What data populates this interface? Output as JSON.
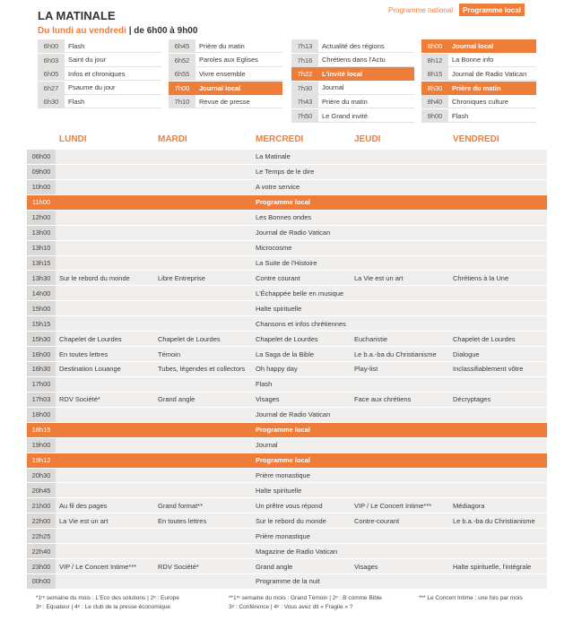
{
  "header": {
    "title": "LA MATINALE",
    "subtitle_days": "Du lundi au vendredi",
    "separator": "|",
    "subtitle_hours": "de 6h00 à 9h00"
  },
  "tabs": [
    {
      "label": "Programme national",
      "active": false
    },
    {
      "label": "Programme local",
      "active": true
    }
  ],
  "morning": {
    "columns": [
      [
        {
          "time": "6h00",
          "program": "Flash"
        },
        {
          "time": "6h03",
          "program": "Saint du jour"
        },
        {
          "time": "6h05",
          "program": "Infos et chroniques"
        },
        {
          "time": "6h27",
          "program": "Psaume du jour"
        },
        {
          "time": "6h30",
          "program": "Flash"
        }
      ],
      [
        {
          "time": "6h45",
          "program": "Prière du matin"
        },
        {
          "time": "6h52",
          "program": "Paroles aux Eglises"
        },
        {
          "time": "6h55",
          "program": "Vivre ensemble"
        },
        {
          "time": "7h00",
          "program": "Journal local",
          "highlight": true
        },
        {
          "time": "7h10",
          "program": "Revue de presse"
        }
      ],
      [
        {
          "time": "7h13",
          "program": "Actualité des régions"
        },
        {
          "time": "7h16",
          "program": "Chrétiens dans l'Actu"
        },
        {
          "time": "7h22",
          "program": "L'invité local",
          "highlight": true
        },
        {
          "time": "7h30",
          "program": "Journal"
        },
        {
          "time": "7h43",
          "program": "Prière du matin"
        },
        {
          "time": "7h50",
          "program": "Le Grand invité"
        }
      ],
      [
        {
          "time": "8h00",
          "program": "Journal local",
          "highlight": true
        },
        {
          "time": "8h12",
          "program": "La Bonne info"
        },
        {
          "time": "8h15",
          "program": "Journal de Radio Vatican"
        },
        {
          "time": "8h30",
          "program": "Prière du matin",
          "highlight": true
        },
        {
          "time": "8h40",
          "program": "Chroniques culture"
        },
        {
          "time": "9h00",
          "program": "Flash"
        }
      ]
    ]
  },
  "weekly": {
    "days": [
      "LUNDI",
      "MARDI",
      "MERCREDI",
      "JEUDI",
      "VENDREDI"
    ],
    "rows": [
      {
        "time": "06h00",
        "program": "La Matinale"
      },
      {
        "time": "09h00",
        "program": "Le Temps de le dire"
      },
      {
        "time": "10h00",
        "program": "A votre service"
      },
      {
        "time": "11h00",
        "program": "Programme local",
        "highlight": true
      },
      {
        "time": "12h00",
        "program": "Les Bonnes ondes"
      },
      {
        "time": "13h00",
        "program": "Journal de Radio Vatican"
      },
      {
        "time": "13h10",
        "program": "Microcosme"
      },
      {
        "time": "13h15",
        "program": "La Suite de l'Histoire"
      },
      {
        "time": "13h30",
        "programs": [
          "Sur le rebord du monde",
          "Libre Entreprise",
          "Contre courant",
          "La Vie est un art",
          "Chrétiens à la Une"
        ]
      },
      {
        "time": "14h00",
        "program": "L'Échappée belle en musique"
      },
      {
        "time": "15h00",
        "program": "Halte spirituelle"
      },
      {
        "time": "15h15",
        "program": "Chansons et infos chrétiennes"
      },
      {
        "time": "15h30",
        "programs": [
          "Chapelet de Lourdes",
          "Chapelet de Lourdes",
          "Chapelet de Lourdes",
          "Eucharistie",
          "Chapelet de Lourdes"
        ]
      },
      {
        "time": "16h00",
        "programs": [
          "En toutes lettres",
          "Témoin",
          "La Saga de la Bible",
          "Le b.a.-ba du Christianisme",
          "Dialogue"
        ]
      },
      {
        "time": "16h30",
        "programs": [
          "Destination Louange",
          "Tubes, légendes et collectors",
          "Oh happy day",
          "Play-list",
          "Inclassifiablement vôtre"
        ]
      },
      {
        "time": "17h00",
        "program": "Flash"
      },
      {
        "time": "17h03",
        "programs": [
          "RDV Société*",
          "Grand angle",
          "Visages",
          "Face aux chrétiens",
          "Décryptages"
        ]
      },
      {
        "time": "18h00",
        "program": "Journal de Radio Vatican"
      },
      {
        "time": "18h15",
        "program": "Programme local",
        "highlight": true
      },
      {
        "time": "19h00",
        "program": "Journal"
      },
      {
        "time": "19h12",
        "program": "Programme local",
        "highlight": true
      },
      {
        "time": "20h30",
        "program": "Prière monastique"
      },
      {
        "time": "20h45",
        "program": "Halte spirituelle"
      },
      {
        "time": "21h00",
        "programs": [
          "Au fil des pages",
          "Grand format**",
          "Un prêtre vous répond",
          "VIP / Le Concert Intime***",
          "Médiagora"
        ]
      },
      {
        "time": "22h00",
        "programs": [
          "La Vie est un art",
          "En toutes lettres",
          "Sur le rebord du monde",
          "Contre-courant",
          "Le b.a.-ba du Christianisme"
        ]
      },
      {
        "time": "22h25",
        "program": "Prière monastique"
      },
      {
        "time": "22h40",
        "program": "Magazine de Radio Vatican"
      },
      {
        "time": "23h00",
        "programs": [
          "VIP / Le Concert Intime***",
          "RDV Société*",
          "Grand angle",
          "Visages",
          "Halte spirituelle, l'intégrale"
        ]
      },
      {
        "time": "00h00",
        "program": "Programme de la nuit"
      }
    ]
  },
  "footnotes": [
    [
      "*1ʳᵉ semaine du mois : L'Eco des solutions | 2ᵉ : Europe",
      "3ᵉ : Equateur | 4ᵉ : Le club de la presse économique"
    ],
    [
      "**1ʳᵉ semaine du mois : Grand Témoin | 2ᵉ : B comme Bible",
      "3ᵉ : Conférence | 4ᵉ : Vous avez dit « Fragile » ?"
    ],
    [
      "*** Le Concert Intime : une fois par mois"
    ]
  ]
}
